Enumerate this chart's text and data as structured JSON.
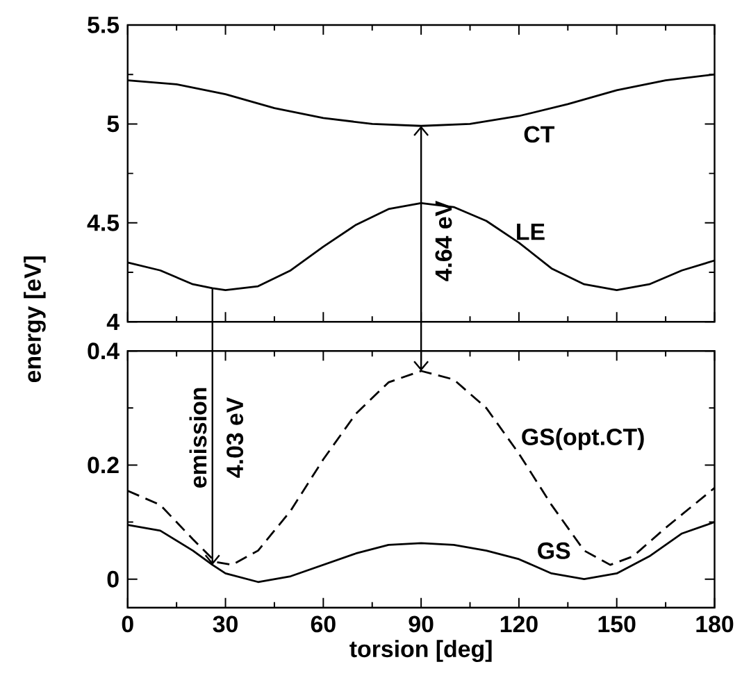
{
  "chart_data": [
    {
      "type": "line",
      "xlim": [
        0,
        180
      ],
      "xticks": [
        0,
        30,
        60,
        90,
        120,
        150,
        180
      ],
      "ylim": [
        4,
        5.5
      ],
      "yticks": [
        4,
        4.5,
        5,
        5.5
      ],
      "tick_labels": "y",
      "ylabel": "energy [eV]",
      "series": [
        {
          "name": "CT",
          "color": "#000000",
          "x": [
            0,
            15,
            30,
            45,
            60,
            75,
            90,
            105,
            120,
            135,
            150,
            165,
            180
          ],
          "values": [
            5.22,
            5.2,
            5.15,
            5.08,
            5.03,
            5.0,
            4.99,
            5.0,
            5.04,
            5.1,
            5.17,
            5.22,
            5.25
          ]
        },
        {
          "name": "LE",
          "color": "#000000",
          "x": [
            0,
            10,
            20,
            26,
            30,
            40,
            50,
            60,
            70,
            80,
            90,
            100,
            110,
            120,
            130,
            140,
            150,
            160,
            170,
            180
          ],
          "values": [
            4.3,
            4.26,
            4.19,
            4.17,
            4.16,
            4.18,
            4.26,
            4.38,
            4.49,
            4.57,
            4.6,
            4.58,
            4.51,
            4.4,
            4.27,
            4.19,
            4.16,
            4.19,
            4.26,
            4.31
          ]
        }
      ],
      "annotations": [
        "4.64 eV"
      ]
    },
    {
      "type": "line",
      "xlim": [
        0,
        180
      ],
      "xticks": [
        0,
        30,
        60,
        90,
        120,
        150,
        180
      ],
      "ylim": [
        -0.05,
        0.4
      ],
      "yticks": [
        0,
        0.2,
        0.4
      ],
      "xlabel": "torsion [deg]",
      "series": [
        {
          "name": "GS(opt.CT)",
          "color": "#000000",
          "line_style": "dashed",
          "x": [
            0,
            10,
            20,
            27,
            32,
            40,
            50,
            60,
            70,
            80,
            90,
            100,
            110,
            120,
            130,
            140,
            148,
            155,
            165,
            180
          ],
          "values": [
            0.155,
            0.13,
            0.07,
            0.03,
            0.025,
            0.05,
            0.12,
            0.21,
            0.29,
            0.345,
            0.365,
            0.35,
            0.3,
            0.22,
            0.13,
            0.05,
            0.025,
            0.04,
            0.09,
            0.16
          ]
        },
        {
          "name": "GS",
          "color": "#000000",
          "x": [
            0,
            10,
            20,
            26,
            30,
            40,
            50,
            60,
            70,
            80,
            90,
            100,
            110,
            120,
            130,
            140,
            150,
            160,
            170,
            180
          ],
          "values": [
            0.095,
            0.085,
            0.05,
            0.025,
            0.01,
            -0.005,
            0.005,
            0.025,
            0.045,
            0.06,
            0.063,
            0.06,
            0.05,
            0.035,
            0.01,
            0.0,
            0.01,
            0.04,
            0.08,
            0.1
          ]
        }
      ],
      "annotations": [
        "emission",
        "4.03 eV"
      ]
    }
  ]
}
